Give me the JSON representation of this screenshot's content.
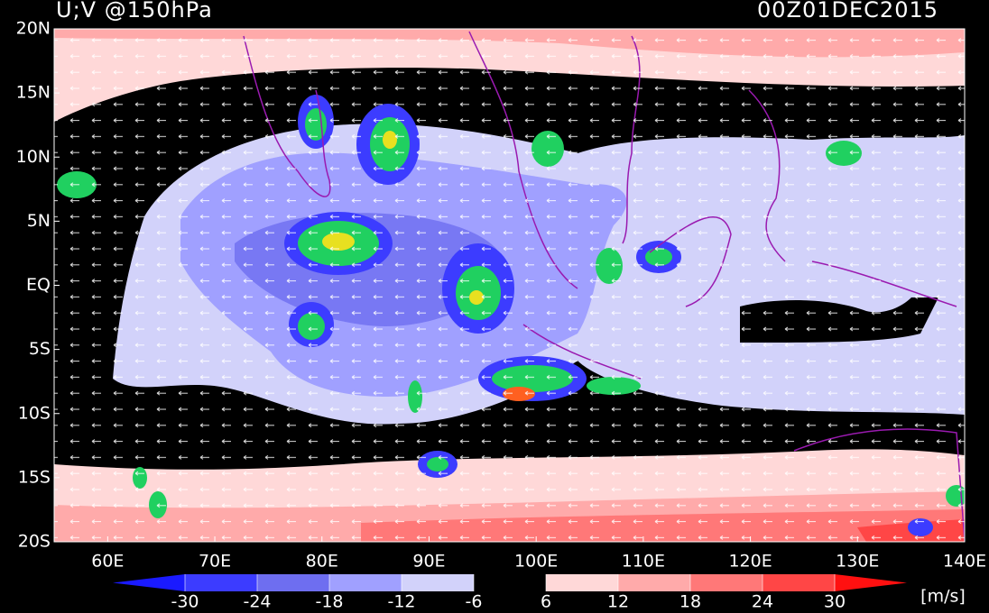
{
  "title": "U;V @150hPa",
  "timestamp": "00Z01DEC2015",
  "lat_labels": [
    "20N",
    "15N",
    "10N",
    "5N",
    "EQ",
    "5S",
    "10S",
    "15S",
    "20S"
  ],
  "lon_labels": [
    "60E",
    "70E",
    "80E",
    "90E",
    "100E",
    "110E",
    "120E",
    "130E",
    "140E"
  ],
  "colorbar": {
    "ticks": [
      -30,
      -24,
      -18,
      -12,
      -6,
      6,
      12,
      18,
      24,
      30
    ],
    "colors": [
      "#1a1aff",
      "#3c3cff",
      "#6e6ef0",
      "#a0a0ff",
      "#d2d2fa",
      "#000000",
      "#ffd8d8",
      "#ffaaaa",
      "#ff7878",
      "#ff4646",
      "#ff1010"
    ],
    "unit": "[m/s]"
  }
}
